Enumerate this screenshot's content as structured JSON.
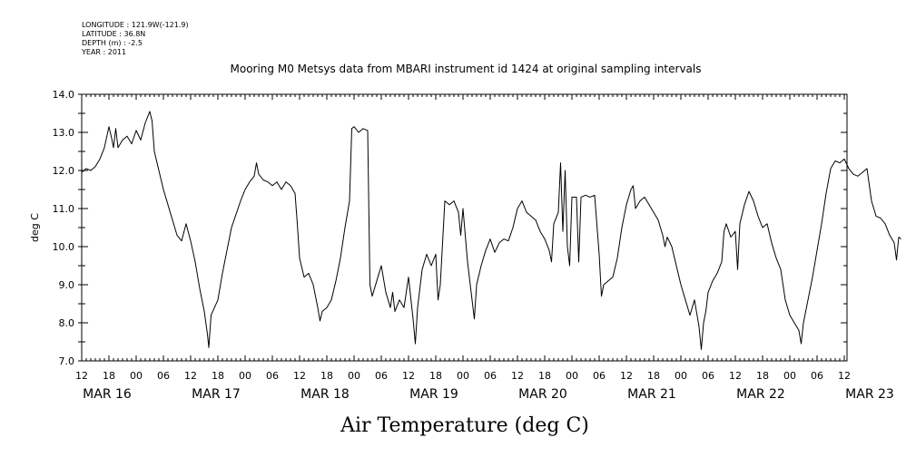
{
  "metadata": {
    "longitude": "LONGITUDE : 121.9W(-121.9)",
    "latitude": "LATITUDE : 36.8N",
    "depth": "DEPTH (m) : -2.5",
    "year": "YEAR : 2011"
  },
  "chart_data": {
    "type": "line",
    "title": "Mooring M0 Metsys data from MBARI instrument id 1424 at original sampling intervals",
    "xlabel": "Air Temperature (deg C)",
    "ylabel": "deg C",
    "ylim": [
      7.0,
      14.0
    ],
    "yticks": [
      "7.0",
      "8.0",
      "9.0",
      "10.0",
      "11.0",
      "12.0",
      "13.0",
      "14.0"
    ],
    "xlim_hours": [
      0,
      168
    ],
    "hour_ticks": [
      "12",
      "18",
      "00",
      "06",
      "12",
      "18",
      "00",
      "06",
      "12",
      "18",
      "00",
      "06",
      "12",
      "18",
      "00",
      "06",
      "12",
      "18",
      "00",
      "06",
      "12",
      "18",
      "00",
      "06",
      "12",
      "18",
      "00",
      "06",
      "12"
    ],
    "day_labels": [
      "MAR 16",
      "MAR 17",
      "MAR 18",
      "MAR 19",
      "MAR 20",
      "MAR 21",
      "MAR 22",
      "MAR 23"
    ],
    "x_unit_note": "hours since MAR 16 12:00",
    "grid": false,
    "series": [
      {
        "color": "#000000",
        "points": [
          [
            0,
            11.95
          ],
          [
            1,
            12.05
          ],
          [
            2,
            12.0
          ],
          [
            3,
            12.1
          ],
          [
            4,
            12.3
          ],
          [
            5,
            12.6
          ],
          [
            6,
            13.15
          ],
          [
            6.5,
            12.9
          ],
          [
            7,
            12.6
          ],
          [
            7.5,
            13.1
          ],
          [
            8,
            12.6
          ],
          [
            9,
            12.8
          ],
          [
            10,
            12.9
          ],
          [
            11,
            12.7
          ],
          [
            12,
            13.05
          ],
          [
            13,
            12.8
          ],
          [
            14,
            13.25
          ],
          [
            15,
            13.55
          ],
          [
            15.5,
            13.3
          ],
          [
            16,
            12.5
          ],
          [
            17,
            12.0
          ],
          [
            18,
            11.5
          ],
          [
            19,
            11.1
          ],
          [
            20,
            10.7
          ],
          [
            21,
            10.3
          ],
          [
            22,
            10.15
          ],
          [
            23,
            10.6
          ],
          [
            24,
            10.15
          ],
          [
            25,
            9.6
          ],
          [
            26,
            8.9
          ],
          [
            27,
            8.3
          ],
          [
            27.7,
            7.7
          ],
          [
            28,
            7.35
          ],
          [
            28.5,
            8.2
          ],
          [
            30,
            8.6
          ],
          [
            31,
            9.3
          ],
          [
            32,
            9.9
          ],
          [
            33,
            10.5
          ],
          [
            34,
            10.85
          ],
          [
            35,
            11.2
          ],
          [
            36,
            11.5
          ],
          [
            37,
            11.7
          ],
          [
            38,
            11.85
          ],
          [
            38.5,
            12.2
          ],
          [
            39,
            11.9
          ],
          [
            40,
            11.75
          ],
          [
            41,
            11.7
          ],
          [
            42,
            11.6
          ],
          [
            43,
            11.7
          ],
          [
            44,
            11.5
          ],
          [
            45,
            11.7
          ],
          [
            46,
            11.6
          ],
          [
            47,
            11.4
          ],
          [
            47.5,
            10.6
          ],
          [
            48,
            9.7
          ],
          [
            49,
            9.2
          ],
          [
            50,
            9.3
          ],
          [
            51,
            9.0
          ],
          [
            52,
            8.4
          ],
          [
            52.5,
            8.05
          ],
          [
            53,
            8.3
          ],
          [
            54,
            8.4
          ],
          [
            55,
            8.6
          ],
          [
            56,
            9.1
          ],
          [
            57,
            9.7
          ],
          [
            58,
            10.5
          ],
          [
            59,
            11.2
          ],
          [
            59.5,
            13.1
          ],
          [
            60,
            13.15
          ],
          [
            61,
            13.0
          ],
          [
            62,
            13.1
          ],
          [
            63,
            13.05
          ],
          [
            63.5,
            9.0
          ],
          [
            64,
            8.7
          ],
          [
            65,
            9.1
          ],
          [
            66,
            9.5
          ],
          [
            67,
            8.8
          ],
          [
            68,
            8.4
          ],
          [
            68.5,
            8.8
          ],
          [
            69,
            8.3
          ],
          [
            70,
            8.6
          ],
          [
            71,
            8.4
          ],
          [
            72,
            9.2
          ],
          [
            73,
            8.1
          ],
          [
            73.5,
            7.45
          ],
          [
            74,
            8.4
          ],
          [
            75,
            9.4
          ],
          [
            76,
            9.8
          ],
          [
            77,
            9.5
          ],
          [
            78,
            9.8
          ],
          [
            78.5,
            8.6
          ],
          [
            79,
            9.0
          ],
          [
            80,
            11.2
          ],
          [
            81,
            11.1
          ],
          [
            82,
            11.2
          ],
          [
            83,
            10.9
          ],
          [
            83.5,
            10.3
          ],
          [
            84,
            11.0
          ],
          [
            85,
            9.6
          ],
          [
            86,
            8.6
          ],
          [
            86.5,
            8.1
          ],
          [
            87,
            9.0
          ],
          [
            88,
            9.5
          ],
          [
            89,
            9.9
          ],
          [
            90,
            10.2
          ],
          [
            91,
            9.85
          ],
          [
            92,
            10.1
          ],
          [
            93,
            10.2
          ],
          [
            94,
            10.15
          ],
          [
            95,
            10.5
          ],
          [
            96,
            11.0
          ],
          [
            97,
            11.2
          ],
          [
            98,
            10.9
          ],
          [
            99,
            10.8
          ],
          [
            100,
            10.7
          ],
          [
            101,
            10.4
          ],
          [
            102,
            10.2
          ],
          [
            103,
            9.9
          ],
          [
            103.5,
            9.6
          ],
          [
            104,
            10.6
          ],
          [
            105,
            10.9
          ],
          [
            105.5,
            12.2
          ],
          [
            106,
            10.4
          ],
          [
            106.5,
            12.0
          ],
          [
            107,
            10.0
          ],
          [
            107.5,
            9.5
          ],
          [
            108,
            11.3
          ],
          [
            109,
            11.3
          ],
          [
            109.5,
            9.6
          ],
          [
            110,
            11.3
          ],
          [
            111,
            11.35
          ],
          [
            112,
            11.3
          ],
          [
            113,
            11.35
          ],
          [
            114,
            9.8
          ],
          [
            114.5,
            8.7
          ],
          [
            115,
            9.0
          ],
          [
            116,
            9.1
          ],
          [
            117,
            9.2
          ],
          [
            118,
            9.7
          ],
          [
            119,
            10.5
          ],
          [
            120,
            11.1
          ],
          [
            121,
            11.5
          ],
          [
            121.5,
            11.6
          ],
          [
            122,
            11.0
          ],
          [
            123,
            11.2
          ],
          [
            124,
            11.3
          ],
          [
            125,
            11.1
          ],
          [
            126,
            10.9
          ],
          [
            127,
            10.7
          ],
          [
            128,
            10.3
          ],
          [
            128.5,
            10.0
          ],
          [
            129,
            10.25
          ],
          [
            130,
            10.0
          ],
          [
            131,
            9.5
          ],
          [
            132,
            9.0
          ],
          [
            133,
            8.6
          ],
          [
            134,
            8.2
          ],
          [
            135,
            8.6
          ],
          [
            136,
            7.9
          ],
          [
            136.5,
            7.3
          ],
          [
            137,
            8.0
          ],
          [
            137.5,
            8.3
          ],
          [
            138,
            8.8
          ],
          [
            139,
            9.1
          ],
          [
            140,
            9.3
          ],
          [
            141,
            9.6
          ],
          [
            141.5,
            10.4
          ],
          [
            142,
            10.6
          ],
          [
            143,
            10.25
          ],
          [
            144,
            10.4
          ],
          [
            144.5,
            9.4
          ],
          [
            145,
            10.6
          ],
          [
            146,
            11.1
          ],
          [
            147,
            11.45
          ],
          [
            148,
            11.2
          ],
          [
            149,
            10.8
          ],
          [
            150,
            10.5
          ],
          [
            151,
            10.6
          ],
          [
            152,
            10.1
          ],
          [
            153,
            9.7
          ],
          [
            154,
            9.4
          ],
          [
            155,
            8.6
          ],
          [
            156,
            8.2
          ],
          [
            157,
            8.0
          ],
          [
            158,
            7.8
          ],
          [
            158.5,
            7.45
          ],
          [
            159,
            8.0
          ],
          [
            160,
            8.6
          ],
          [
            161,
            9.2
          ],
          [
            162,
            9.9
          ],
          [
            163,
            10.6
          ],
          [
            164,
            11.4
          ],
          [
            165,
            12.05
          ],
          [
            166,
            12.25
          ],
          [
            167,
            12.2
          ],
          [
            168,
            12.3
          ],
          [
            169,
            12.05
          ],
          [
            170,
            11.9
          ],
          [
            171,
            11.85
          ],
          [
            172,
            11.95
          ],
          [
            173,
            12.05
          ],
          [
            174,
            11.2
          ],
          [
            175,
            10.8
          ],
          [
            176,
            10.75
          ],
          [
            177,
            10.6
          ],
          [
            178,
            10.3
          ],
          [
            179,
            10.1
          ],
          [
            179.5,
            9.65
          ],
          [
            180,
            10.25
          ],
          [
            180.5,
            10.2
          ]
        ]
      }
    ]
  }
}
